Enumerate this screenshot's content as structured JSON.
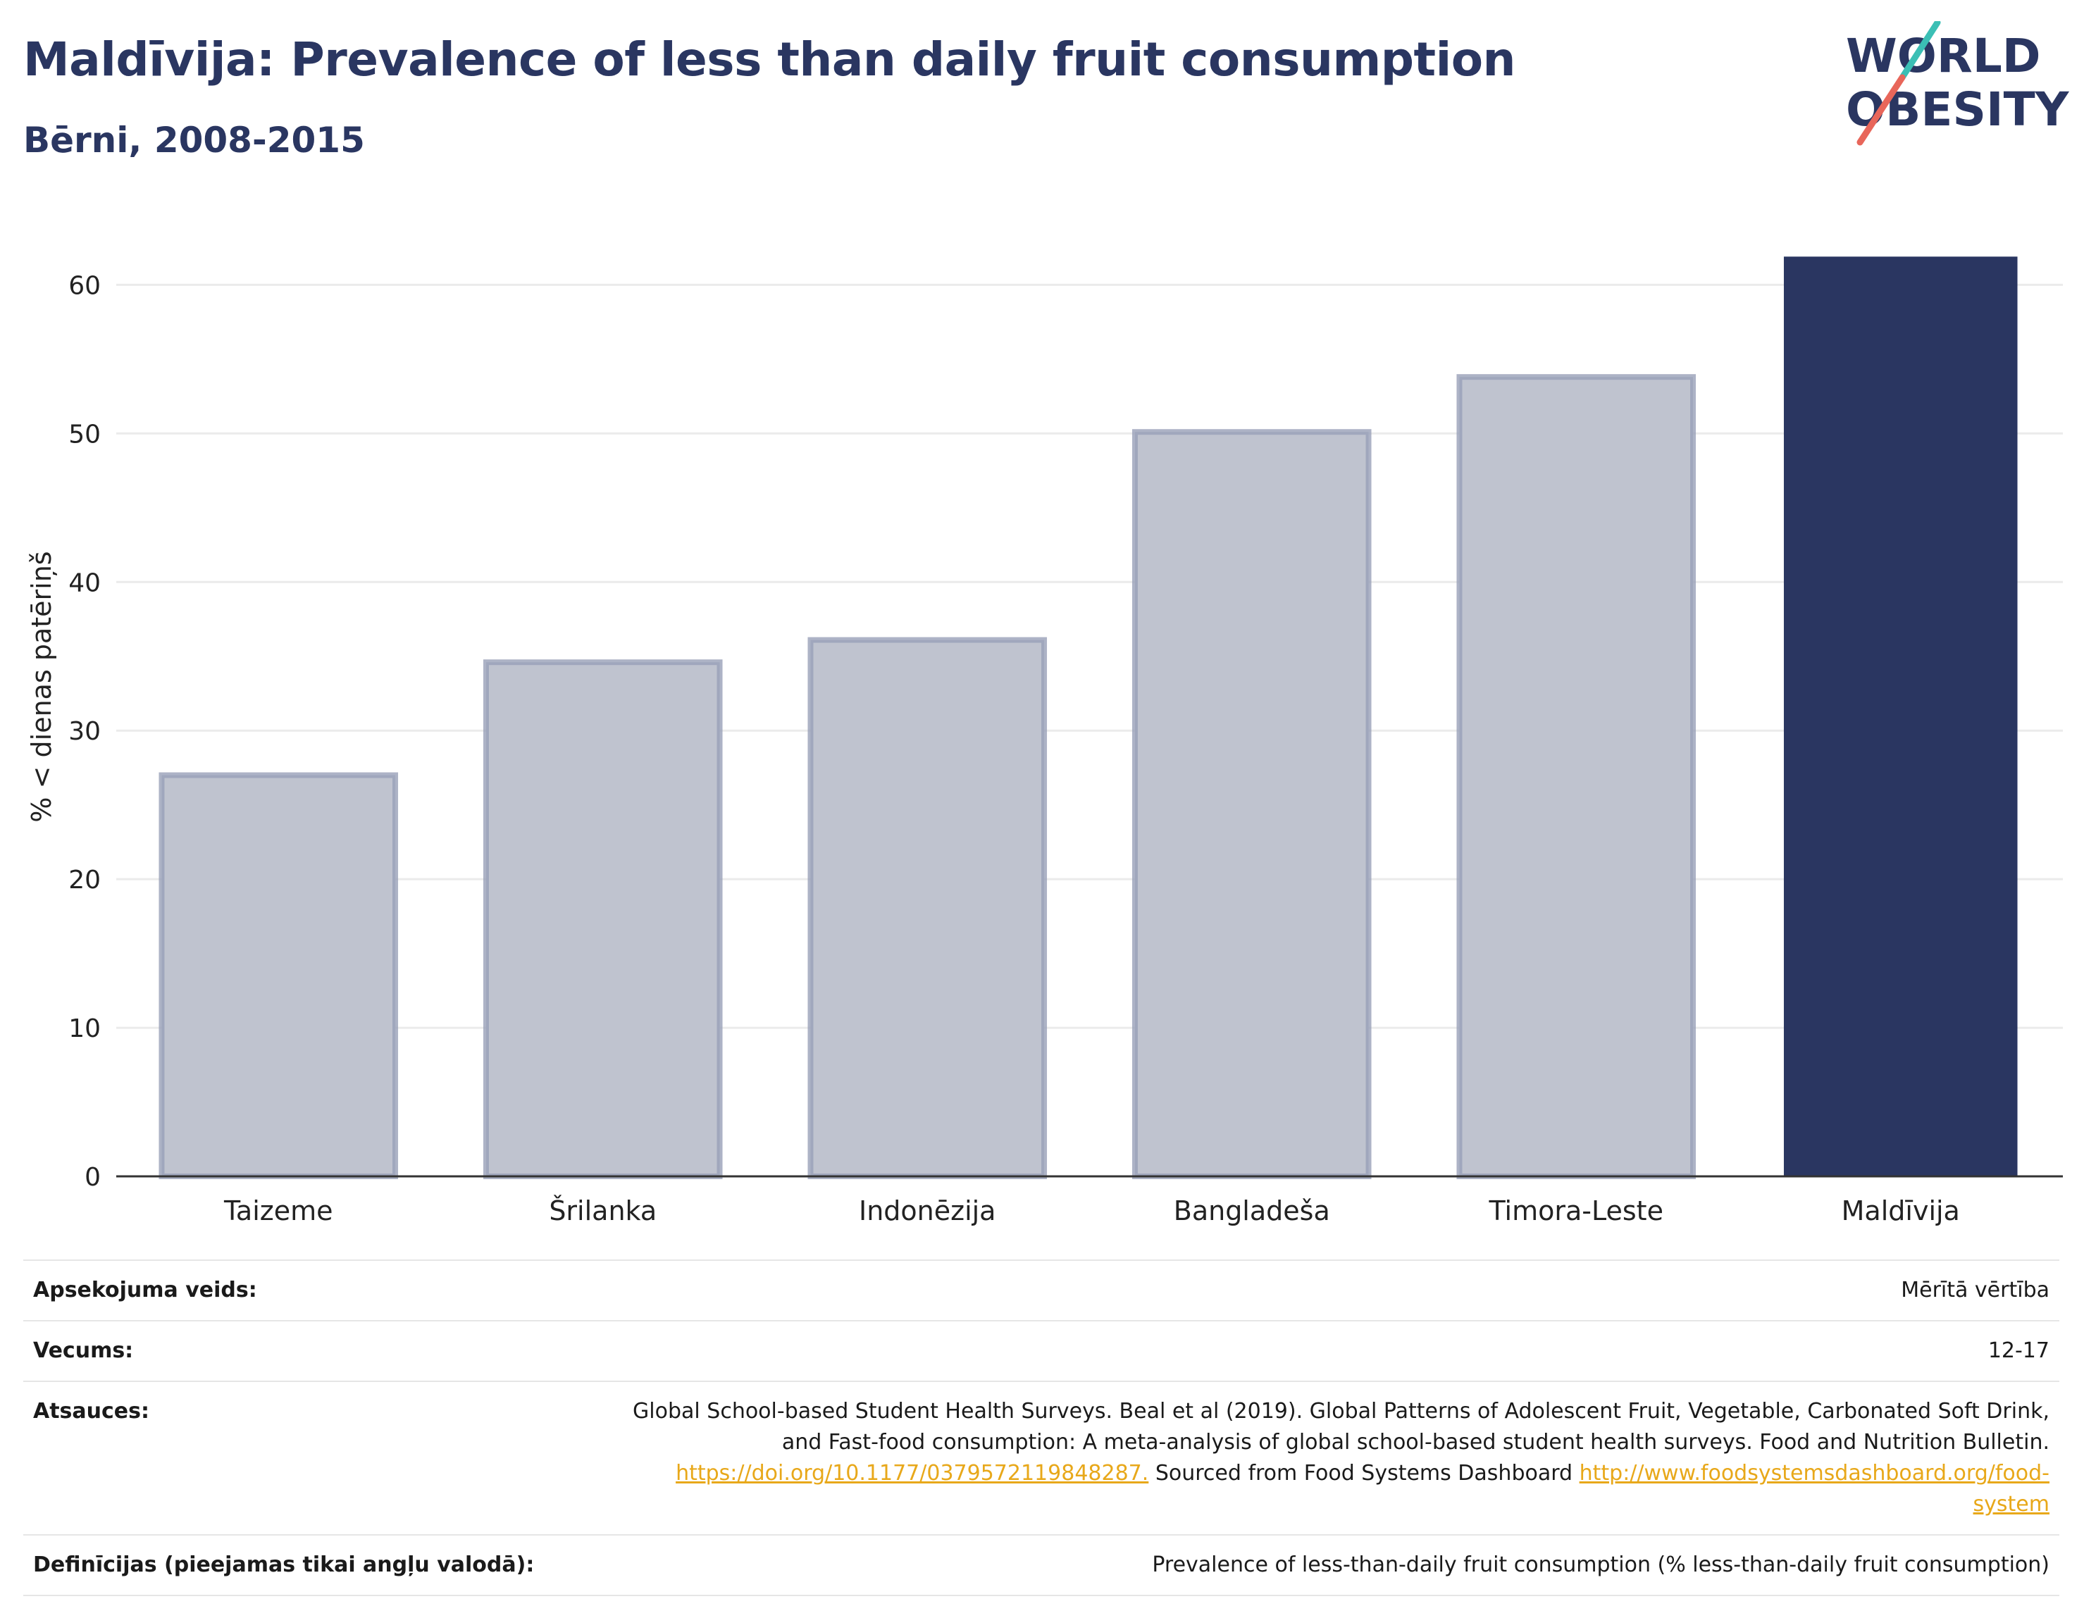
{
  "header": {
    "title": "Maldīvija: Prevalence of less than daily fruit consumption",
    "subtitle": "Bērni, 2008-2015"
  },
  "logo": {
    "line1": "WORLD",
    "line2": "OBESITY",
    "accent_teal": "#3bbfb5",
    "accent_red": "#e8665a",
    "color": "#2a3661"
  },
  "chart_data": {
    "type": "bar",
    "categories": [
      "Taizeme",
      "Šrilanka",
      "Indonēzija",
      "Bangladeša",
      "Timora-Leste",
      "Maldīvija"
    ],
    "values": [
      27.0,
      34.6,
      36.1,
      50.1,
      53.8,
      61.9
    ],
    "highlight": "Maldīvija",
    "ylabel": "% < dienas patēriņš",
    "ylim": [
      0,
      64
    ],
    "yticks": [
      0,
      10,
      20,
      30,
      40,
      50,
      60
    ],
    "grid": true,
    "colors": {
      "highlight": "#2a3661",
      "other_fill": "#bfc3cf",
      "other_stroke": "#98a0b8"
    }
  },
  "meta": [
    {
      "key": "Apsekojuma veids:",
      "value": "Mērītā vērtība"
    },
    {
      "key": "Vecums:",
      "value": "12-17"
    },
    {
      "key": "Atsauces:",
      "value_line1": "Global School-based Student Health Surveys. Beal et al (2019). Global Patterns of Adolescent Fruit, Vegetable, Carbonated Soft Drink,",
      "value_line2": "and Fast-food consumption: A meta-analysis of global school-based student health surveys. Food and Nutrition Bulletin.",
      "link1": "https://doi.org/10.1177/0379572119848287.",
      "mid_text": " Sourced from Food Systems Dashboard ",
      "link2a": "http://www.foodsystemsdashboard.org/food-",
      "link2b": "system"
    },
    {
      "key": "Definīcijas (pieejamas tikai angļu valodā):",
      "value": "Prevalence of less-than-daily fruit consumption (% less-than-daily fruit consumption)"
    }
  ]
}
